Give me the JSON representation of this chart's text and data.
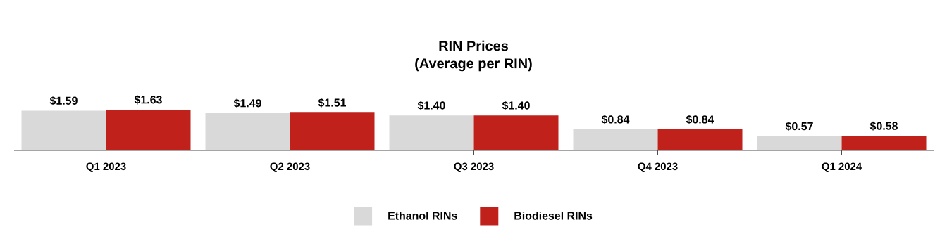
{
  "chart_data": {
    "type": "bar",
    "title": "RIN Prices",
    "subtitle": "(Average per RIN)",
    "categories": [
      "Q1 2023",
      "Q2 2023",
      "Q3 2023",
      "Q4 2023",
      "Q1 2024"
    ],
    "series": [
      {
        "name": "Ethanol RINs",
        "color": "#d9d9d9",
        "values": [
          1.59,
          1.49,
          1.4,
          0.84,
          0.57
        ],
        "value_labels": [
          "$1.59",
          "$1.49",
          "$1.40",
          "$0.84",
          "$0.57"
        ]
      },
      {
        "name": "Biodiesel RINs",
        "color": "#c0211a",
        "values": [
          1.63,
          1.51,
          1.4,
          0.84,
          0.58
        ],
        "value_labels": [
          "$1.63",
          "$1.51",
          "$1.40",
          "$0.84",
          "$0.58"
        ]
      }
    ],
    "legend": "bottom"
  }
}
